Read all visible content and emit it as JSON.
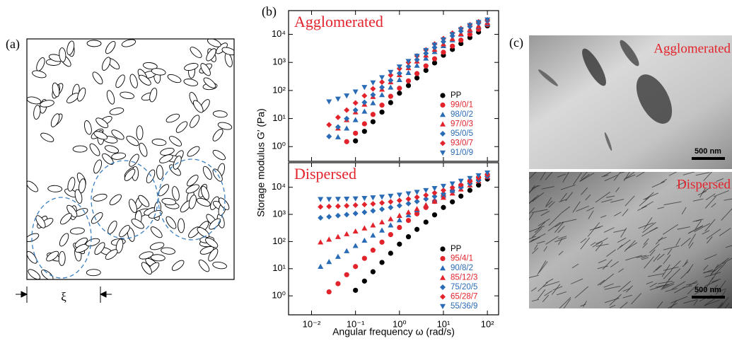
{
  "schematic": {
    "label": "(a)",
    "length_symbol": "ξ"
  },
  "images": {
    "label": "(c)",
    "top": {
      "caption": "Agglomerated",
      "scale": "500 nm"
    },
    "bottom": {
      "caption": "Dispersed",
      "scale": "500 nm"
    }
  },
  "chart_data": [
    {
      "type": "scatter",
      "panel_label": "(b)",
      "annotation": "Agglomerated",
      "annotation_color": "#e3232b",
      "ylabel": "Storage modulus G′ (Pa)",
      "log_x": true,
      "log_y": true,
      "x": [
        0.01,
        0.016,
        0.025,
        0.04,
        0.063,
        0.1,
        0.16,
        0.25,
        0.4,
        0.63,
        1,
        1.6,
        2.5,
        4,
        6.3,
        10,
        16,
        25,
        40,
        63,
        100
      ],
      "xlim": [
        0.003,
        180
      ],
      "ylim": [
        0.3,
        70000
      ],
      "yticks": [
        {
          "value": 1,
          "label": "10⁰"
        },
        {
          "value": 10,
          "label": "10¹"
        },
        {
          "value": 100,
          "label": "10²"
        },
        {
          "value": 1000,
          "label": "10³"
        },
        {
          "value": 10000,
          "label": "10⁴"
        }
      ],
      "series": [
        {
          "name": "PP",
          "color": "#000000",
          "marker": "circle",
          "values": [
            null,
            null,
            null,
            null,
            null,
            1.6,
            3.5,
            7.7,
            17,
            37,
            80,
            150,
            280,
            520,
            960,
            1800,
            2900,
            4700,
            7700,
            12000,
            20000
          ]
        },
        {
          "name": "99/0/1",
          "color": "#e3232b",
          "marker": "circle",
          "values": [
            null,
            null,
            null,
            null,
            1.5,
            3,
            6.5,
            14,
            30,
            62,
            120,
            220,
            400,
            750,
            1350,
            2300,
            3800,
            6200,
            10000,
            15000,
            22000
          ]
        },
        {
          "name": "98/0/2",
          "color": "#2a6bb5",
          "marker": "triangle",
          "values": [
            null,
            null,
            null,
            2.2,
            4.5,
            9,
            18,
            36,
            70,
            130,
            240,
            430,
            780,
            1400,
            2400,
            3900,
            6300,
            10000,
            14000,
            19000,
            24000
          ]
        },
        {
          "name": "97/0/3",
          "color": "#e3232b",
          "marker": "triangle",
          "values": [
            null,
            null,
            null,
            4.5,
            9,
            17,
            32,
            60,
            110,
            200,
            360,
            640,
            1100,
            1800,
            2900,
            4500,
            7000,
            10500,
            15000,
            20000,
            26000
          ]
        },
        {
          "name": "95/0/5",
          "color": "#2a6bb5",
          "marker": "diamond",
          "values": [
            null,
            null,
            2.3,
            5,
            10,
            20,
            38,
            70,
            130,
            230,
            410,
            720,
            1250,
            2100,
            3400,
            5500,
            8800,
            13000,
            19000,
            25000,
            30000
          ]
        },
        {
          "name": "93/0/7",
          "color": "#e3232b",
          "marker": "diamond",
          "values": [
            null,
            null,
            6,
            11,
            20,
            36,
            65,
            115,
            200,
            350,
            600,
            1000,
            1700,
            2800,
            4500,
            7000,
            11000,
            16000,
            22000,
            28000,
            33000
          ]
        },
        {
          "name": "91/0/9",
          "color": "#2a6bb5",
          "marker": "triangle-down",
          "values": [
            null,
            null,
            40,
            50,
            65,
            90,
            130,
            190,
            290,
            450,
            700,
            1100,
            1700,
            2700,
            4200,
            6500,
            10000,
            15000,
            21000,
            27000,
            33000
          ]
        }
      ]
    },
    {
      "type": "scatter",
      "annotation": "Dispersed",
      "annotation_color": "#e3232b",
      "xlabel": "Angular frequency ω (rad/s)",
      "log_x": true,
      "log_y": true,
      "x": [
        0.01,
        0.016,
        0.025,
        0.04,
        0.063,
        0.1,
        0.16,
        0.25,
        0.4,
        0.63,
        1,
        1.6,
        2.5,
        4,
        6.3,
        10,
        16,
        25,
        40,
        63,
        100
      ],
      "xlim": [
        0.003,
        180
      ],
      "ylim": [
        0.2,
        80000
      ],
      "xticks": [
        {
          "value": 0.01,
          "label": "10⁻²"
        },
        {
          "value": 0.1,
          "label": "10⁻¹"
        },
        {
          "value": 1,
          "label": "10⁰"
        },
        {
          "value": 10,
          "label": "10¹"
        },
        {
          "value": 100,
          "label": "10²"
        }
      ],
      "yticks": [
        {
          "value": 1,
          "label": "10⁰"
        },
        {
          "value": 10,
          "label": "10¹"
        },
        {
          "value": 100,
          "label": "10²"
        },
        {
          "value": 1000,
          "label": "10³"
        },
        {
          "value": 10000,
          "label": "10⁴"
        }
      ],
      "series": [
        {
          "name": "PP",
          "color": "#000000",
          "marker": "circle",
          "values": [
            null,
            null,
            null,
            null,
            null,
            1.6,
            3.5,
            7.7,
            17,
            37,
            80,
            150,
            280,
            520,
            960,
            1800,
            2900,
            4700,
            7700,
            12000,
            20000
          ]
        },
        {
          "name": "95/4/1",
          "color": "#e3232b",
          "marker": "circle",
          "values": [
            null,
            null,
            1.4,
            2.8,
            6,
            12,
            24,
            48,
            95,
            180,
            330,
            600,
            1050,
            1800,
            3000,
            4800,
            7500,
            11500,
            17000,
            23000,
            29000
          ]
        },
        {
          "name": "90/8/2",
          "color": "#2a6bb5",
          "marker": "triangle",
          "values": [
            null,
            12,
            18,
            28,
            45,
            70,
            110,
            170,
            260,
            400,
            620,
            950,
            1450,
            2200,
            3300,
            5000,
            7500,
            11000,
            16000,
            22000,
            29000
          ]
        },
        {
          "name": "85/12/3",
          "color": "#e3232b",
          "marker": "triangle",
          "values": [
            null,
            95,
            120,
            150,
            190,
            240,
            310,
            400,
            520,
            680,
            900,
            1200,
            1600,
            2200,
            3000,
            4200,
            6000,
            8500,
            12000,
            17000,
            24000
          ]
        },
        {
          "name": "75/20/5",
          "color": "#2a6bb5",
          "marker": "diamond",
          "values": [
            null,
            750,
            820,
            900,
            980,
            1080,
            1200,
            1350,
            1550,
            1800,
            2100,
            2500,
            3000,
            3700,
            4600,
            5800,
            7500,
            10000,
            13500,
            18000,
            25000
          ]
        },
        {
          "name": "65/28/7",
          "color": "#e3232b",
          "marker": "diamond",
          "values": [
            null,
            1900,
            1950,
            2000,
            2080,
            2180,
            2300,
            2450,
            2650,
            2900,
            3250,
            3700,
            4300,
            5100,
            6200,
            7700,
            9800,
            12500,
            16500,
            22000,
            29000
          ]
        },
        {
          "name": "55/36/9",
          "color": "#2a6bb5",
          "marker": "triangle-down",
          "values": [
            null,
            3600,
            3600,
            3650,
            3700,
            3800,
            3950,
            4150,
            4400,
            4750,
            5200,
            5800,
            6600,
            7700,
            9100,
            11000,
            13500,
            17000,
            21500,
            27000,
            34000
          ]
        }
      ]
    }
  ]
}
